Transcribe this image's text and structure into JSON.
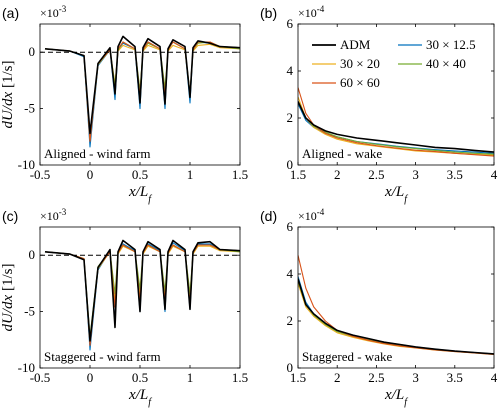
{
  "colors": {
    "ADM": "#000000",
    "30x12.5": "#0072BD",
    "30x20": "#EDB120",
    "40x40": "#77AC30",
    "60x60": "#D95319"
  },
  "legend": {
    "placement": "top-right of panel (b)",
    "entries": [
      {
        "key": "ADM",
        "label": "ADM"
      },
      {
        "key": "30x12.5",
        "label": "30 × 12.5"
      },
      {
        "key": "30x20",
        "label": "30 × 20"
      },
      {
        "key": "40x40",
        "label": "40 × 40"
      },
      {
        "key": "60x60",
        "label": "60 × 60"
      }
    ]
  },
  "chart_data": [
    {
      "panel": "(a)",
      "type": "line",
      "annotation": "Aligned - wind farm",
      "xlabel": "x/L_f",
      "ylabel": "dU/dx [1/s]",
      "y_multiplier": "×10^-3",
      "xlim": [
        -0.5,
        1.5
      ],
      "ylim": [
        -10,
        2.5
      ],
      "xticks": [
        "-0.5",
        "0",
        "0.5",
        "1",
        "1.5"
      ],
      "yticks": [
        "-10",
        "-5",
        "0"
      ],
      "reference_line": {
        "y": 0,
        "style": "dashed"
      },
      "turbine_positions": [
        0,
        0.25,
        0.5,
        0.75,
        1.0
      ],
      "series": [
        {
          "key": "ADM",
          "x": [
            -0.45,
            -0.2,
            -0.06,
            0.0,
            0.08,
            0.2,
            0.25,
            0.28,
            0.33,
            0.45,
            0.5,
            0.53,
            0.58,
            0.7,
            0.75,
            0.78,
            0.83,
            0.95,
            1.0,
            1.03,
            1.08,
            1.2,
            1.3,
            1.5
          ],
          "y": [
            0.3,
            0.1,
            -0.3,
            -7.2,
            -1.0,
            0.4,
            -3.7,
            0.5,
            1.4,
            0.5,
            -4.5,
            0.4,
            1.2,
            0.5,
            -4.6,
            0.3,
            1.1,
            0.5,
            -4.0,
            0.4,
            1.0,
            0.8,
            0.5,
            0.4
          ]
        },
        {
          "key": "30x12.5",
          "x": [
            -0.45,
            -0.2,
            -0.06,
            0.0,
            0.08,
            0.2,
            0.25,
            0.28,
            0.33,
            0.45,
            0.5,
            0.53,
            0.58,
            0.7,
            0.75,
            0.78,
            0.83,
            0.95,
            1.0,
            1.03,
            1.08,
            1.2,
            1.3,
            1.5
          ],
          "y": [
            0.3,
            0.1,
            -0.4,
            -8.4,
            -1.2,
            0.2,
            -4.2,
            0.2,
            0.8,
            0.3,
            -5.0,
            0.2,
            0.9,
            0.3,
            -5.0,
            0.2,
            0.9,
            0.3,
            -4.5,
            0.2,
            0.9,
            0.8,
            0.5,
            0.4
          ]
        },
        {
          "key": "30x20",
          "x": [
            -0.45,
            -0.2,
            -0.06,
            0.0,
            0.08,
            0.2,
            0.25,
            0.28,
            0.33,
            0.45,
            0.5,
            0.53,
            0.58,
            0.7,
            0.75,
            0.78,
            0.83,
            0.95,
            1.0,
            1.03,
            1.08,
            1.2,
            1.3,
            1.5
          ],
          "y": [
            0.3,
            0.1,
            -0.3,
            -7.8,
            -1.1,
            0.2,
            -2.8,
            0.1,
            0.6,
            0.2,
            -3.6,
            0.1,
            0.6,
            0.2,
            -3.8,
            0.1,
            0.6,
            0.2,
            -3.8,
            0.1,
            0.6,
            0.7,
            0.4,
            0.3
          ]
        },
        {
          "key": "40x40",
          "x": [
            -0.45,
            -0.2,
            -0.06,
            0.0,
            0.08,
            0.2,
            0.25,
            0.28,
            0.33,
            0.45,
            0.5,
            0.53,
            0.58,
            0.7,
            0.75,
            0.78,
            0.83,
            0.95,
            1.0,
            1.03,
            1.08,
            1.2,
            1.3,
            1.5
          ],
          "y": [
            0.3,
            0.1,
            -0.3,
            -7.6,
            -1.0,
            0.2,
            -3.0,
            0.2,
            0.9,
            0.3,
            -3.4,
            0.2,
            0.8,
            0.3,
            -3.2,
            0.2,
            0.9,
            0.3,
            -3.6,
            0.2,
            0.8,
            0.9,
            0.5,
            0.3
          ]
        },
        {
          "key": "60x60",
          "x": [
            -0.45,
            -0.2,
            -0.06,
            0.0,
            0.08,
            0.2,
            0.25,
            0.28,
            0.33,
            0.45,
            0.5,
            0.53,
            0.58,
            0.7,
            0.75,
            0.78,
            0.83,
            0.95,
            1.0,
            1.03,
            1.08,
            1.2,
            1.3,
            1.5
          ],
          "y": [
            0.3,
            0.1,
            -0.3,
            -7.9,
            -1.0,
            0.2,
            -3.6,
            0.3,
            0.9,
            0.3,
            -3.9,
            0.2,
            0.9,
            0.3,
            -3.9,
            0.2,
            0.9,
            0.3,
            -3.8,
            0.2,
            0.9,
            0.9,
            0.5,
            0.4
          ]
        }
      ]
    },
    {
      "panel": "(b)",
      "type": "line",
      "annotation": "Aligned - wake",
      "xlabel": "x/L_f",
      "ylabel": "",
      "y_multiplier": "×10^-4",
      "xlim": [
        1.5,
        4
      ],
      "ylim": [
        0,
        6
      ],
      "xticks": [
        "1.5",
        "2",
        "2.5",
        "3",
        "3.5",
        "4"
      ],
      "yticks": [
        "0",
        "2",
        "4",
        "6"
      ],
      "series": [
        {
          "key": "ADM",
          "x": [
            1.5,
            1.6,
            1.7,
            1.85,
            2.0,
            2.25,
            2.5,
            2.75,
            3.0,
            3.25,
            3.5,
            3.75,
            4.0
          ],
          "y": [
            2.7,
            2.0,
            1.7,
            1.45,
            1.3,
            1.15,
            1.05,
            0.95,
            0.85,
            0.75,
            0.7,
            0.62,
            0.55
          ]
        },
        {
          "key": "30x12.5",
          "x": [
            1.5,
            1.6,
            1.7,
            1.85,
            2.0,
            2.25,
            2.5,
            2.75,
            3.0,
            3.25,
            3.5,
            3.75,
            4.0
          ],
          "y": [
            2.6,
            1.9,
            1.6,
            1.35,
            1.2,
            1.0,
            0.9,
            0.8,
            0.72,
            0.65,
            0.6,
            0.55,
            0.5
          ]
        },
        {
          "key": "30x20",
          "x": [
            1.5,
            1.6,
            1.7,
            1.85,
            2.0,
            2.25,
            2.5,
            2.75,
            3.0,
            3.25,
            3.5,
            3.75,
            4.0
          ],
          "y": [
            2.9,
            2.0,
            1.6,
            1.3,
            1.1,
            0.9,
            0.8,
            0.7,
            0.6,
            0.55,
            0.5,
            0.45,
            0.42
          ]
        },
        {
          "key": "40x40",
          "x": [
            1.5,
            1.6,
            1.7,
            1.85,
            2.0,
            2.25,
            2.5,
            2.75,
            3.0,
            3.25,
            3.5,
            3.75,
            4.0
          ],
          "y": [
            2.7,
            2.0,
            1.65,
            1.4,
            1.2,
            1.0,
            0.88,
            0.78,
            0.7,
            0.62,
            0.55,
            0.5,
            0.46
          ]
        },
        {
          "key": "60x60",
          "x": [
            1.5,
            1.6,
            1.7,
            1.85,
            2.0,
            2.25,
            2.5,
            2.75,
            3.0,
            3.25,
            3.5,
            3.75,
            4.0
          ],
          "y": [
            3.3,
            2.2,
            1.7,
            1.35,
            1.15,
            0.95,
            0.82,
            0.72,
            0.63,
            0.57,
            0.5,
            0.44,
            0.38
          ]
        }
      ]
    },
    {
      "panel": "(c)",
      "type": "line",
      "annotation": "Staggered - wind farm",
      "xlabel": "x/L_f",
      "ylabel": "dU/dx [1/s]",
      "y_multiplier": "×10^-3",
      "xlim": [
        -0.5,
        1.5
      ],
      "ylim": [
        -10,
        2.5
      ],
      "xticks": [
        "-0.5",
        "0",
        "0.5",
        "1",
        "1.5"
      ],
      "yticks": [
        "-10",
        "-5",
        "0"
      ],
      "reference_line": {
        "y": 0,
        "style": "dashed"
      },
      "turbine_positions": [
        0,
        0.25,
        0.5,
        0.75,
        1.0
      ],
      "series": [
        {
          "key": "ADM",
          "x": [
            -0.45,
            -0.2,
            -0.06,
            0.0,
            0.08,
            0.2,
            0.25,
            0.28,
            0.33,
            0.45,
            0.5,
            0.53,
            0.58,
            0.7,
            0.75,
            0.78,
            0.83,
            0.95,
            1.0,
            1.03,
            1.08,
            1.2,
            1.3,
            1.5
          ],
          "y": [
            0.3,
            0.1,
            -0.4,
            -7.6,
            -1.1,
            0.5,
            -6.4,
            0.3,
            1.3,
            0.5,
            -5.0,
            0.3,
            1.2,
            0.5,
            -4.8,
            0.3,
            1.3,
            0.5,
            -4.8,
            0.3,
            1.1,
            1.2,
            0.5,
            0.4
          ]
        },
        {
          "key": "30x12.5",
          "x": [
            -0.45,
            -0.2,
            -0.06,
            0.0,
            0.08,
            0.2,
            0.25,
            0.28,
            0.33,
            0.45,
            0.5,
            0.53,
            0.58,
            0.7,
            0.75,
            0.78,
            0.83,
            0.95,
            1.0,
            1.03,
            1.08,
            1.2,
            1.3,
            1.5
          ],
          "y": [
            0.3,
            0.1,
            -0.4,
            -8.4,
            -1.3,
            0.4,
            -6.0,
            0.2,
            1.0,
            0.4,
            -5.0,
            0.2,
            1.0,
            0.4,
            -5.0,
            0.2,
            1.1,
            0.4,
            -4.8,
            0.2,
            1.0,
            1.0,
            0.5,
            0.4
          ]
        },
        {
          "key": "30x20",
          "x": [
            -0.45,
            -0.2,
            -0.06,
            0.0,
            0.08,
            0.2,
            0.25,
            0.28,
            0.33,
            0.45,
            0.5,
            0.53,
            0.58,
            0.7,
            0.75,
            0.78,
            0.83,
            0.95,
            1.0,
            1.03,
            1.08,
            1.2,
            1.3,
            1.5
          ],
          "y": [
            0.3,
            0.1,
            -0.3,
            -7.8,
            -1.2,
            0.3,
            -3.8,
            0.1,
            0.8,
            0.3,
            -3.4,
            0.1,
            0.8,
            0.3,
            -3.8,
            0.1,
            0.8,
            0.3,
            -3.6,
            0.1,
            0.8,
            0.8,
            0.4,
            0.3
          ]
        },
        {
          "key": "40x40",
          "x": [
            -0.45,
            -0.2,
            -0.06,
            0.0,
            0.08,
            0.2,
            0.25,
            0.28,
            0.33,
            0.45,
            0.5,
            0.53,
            0.58,
            0.7,
            0.75,
            0.78,
            0.83,
            0.95,
            1.0,
            1.03,
            1.08,
            1.2,
            1.3,
            1.5
          ],
          "y": [
            0.3,
            0.1,
            -0.3,
            -7.2,
            -1.0,
            0.3,
            -3.4,
            0.2,
            0.9,
            0.3,
            -3.0,
            0.2,
            0.9,
            0.3,
            -3.2,
            0.2,
            0.9,
            0.3,
            -3.4,
            0.2,
            0.9,
            0.9,
            0.5,
            0.3
          ]
        },
        {
          "key": "60x60",
          "x": [
            -0.45,
            -0.2,
            -0.06,
            0.0,
            0.08,
            0.2,
            0.25,
            0.28,
            0.33,
            0.45,
            0.5,
            0.53,
            0.58,
            0.7,
            0.75,
            0.78,
            0.83,
            0.95,
            1.0,
            1.03,
            1.08,
            1.2,
            1.3,
            1.5
          ],
          "y": [
            0.3,
            0.1,
            -0.3,
            -8.0,
            -1.1,
            0.3,
            -4.6,
            0.2,
            0.9,
            0.3,
            -4.0,
            0.2,
            0.9,
            0.3,
            -4.0,
            0.2,
            0.9,
            0.3,
            -4.2,
            0.2,
            0.9,
            0.9,
            0.5,
            0.4
          ]
        }
      ]
    },
    {
      "panel": "(d)",
      "type": "line",
      "annotation": "Staggered - wake",
      "xlabel": "x/L_f",
      "ylabel": "",
      "y_multiplier": "×10^-4",
      "xlim": [
        1.5,
        4
      ],
      "ylim": [
        0,
        6
      ],
      "xticks": [
        "1.5",
        "2",
        "2.5",
        "3",
        "3.5",
        "4"
      ],
      "yticks": [
        "0",
        "2",
        "4",
        "6"
      ],
      "series": [
        {
          "key": "ADM",
          "x": [
            1.5,
            1.6,
            1.7,
            1.85,
            2.0,
            2.2,
            2.4,
            2.6,
            2.8,
            3.0,
            3.25,
            3.5,
            3.75,
            4.0
          ],
          "y": [
            3.8,
            2.7,
            2.3,
            1.9,
            1.6,
            1.4,
            1.25,
            1.1,
            1.0,
            0.9,
            0.8,
            0.72,
            0.66,
            0.6
          ]
        },
        {
          "key": "30x12.5",
          "x": [
            1.5,
            1.6,
            1.7,
            1.85,
            2.0,
            2.2,
            2.4,
            2.6,
            2.8,
            3.0,
            3.25,
            3.5,
            3.75,
            4.0
          ],
          "y": [
            3.9,
            2.8,
            2.3,
            1.9,
            1.6,
            1.4,
            1.25,
            1.1,
            1.0,
            0.9,
            0.8,
            0.72,
            0.66,
            0.6
          ]
        },
        {
          "key": "30x20",
          "x": [
            1.5,
            1.6,
            1.7,
            1.85,
            2.0,
            2.2,
            2.4,
            2.6,
            2.8,
            3.0,
            3.25,
            3.5,
            3.75,
            4.0
          ],
          "y": [
            3.6,
            2.6,
            2.2,
            1.8,
            1.5,
            1.3,
            1.15,
            1.02,
            0.92,
            0.85,
            0.76,
            0.7,
            0.64,
            0.58
          ]
        },
        {
          "key": "40x40",
          "x": [
            1.5,
            1.6,
            1.7,
            1.85,
            2.0,
            2.2,
            2.4,
            2.6,
            2.8,
            3.0,
            3.25,
            3.5,
            3.75,
            4.0
          ],
          "y": [
            3.7,
            2.7,
            2.25,
            1.85,
            1.55,
            1.35,
            1.2,
            1.06,
            0.95,
            0.87,
            0.78,
            0.71,
            0.65,
            0.59
          ]
        },
        {
          "key": "60x60",
          "x": [
            1.5,
            1.6,
            1.7,
            1.85,
            2.0,
            2.2,
            2.4,
            2.6,
            2.8,
            3.0,
            3.25,
            3.5,
            3.75,
            4.0
          ],
          "y": [
            4.8,
            3.4,
            2.6,
            2.0,
            1.6,
            1.35,
            1.18,
            1.04,
            0.94,
            0.86,
            0.77,
            0.7,
            0.64,
            0.58
          ]
        }
      ]
    }
  ]
}
